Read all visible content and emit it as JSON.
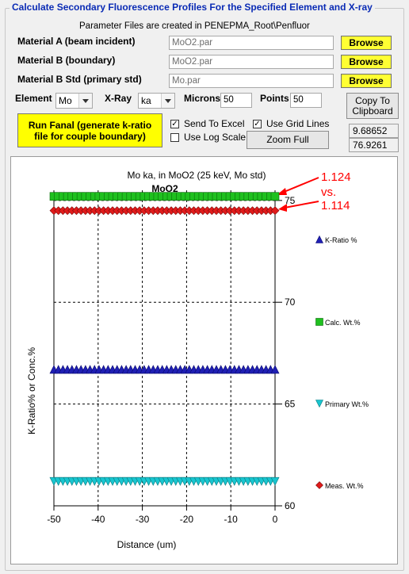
{
  "group_title": "Calculate Secondary Fluorescence Profiles For the Specified Element and X-ray",
  "note": "Parameter Files are created in PENEPMA_Root\\Penfluor",
  "materials": [
    {
      "label": "Material A (beam incident)",
      "value": "MoO2.par",
      "button": "Browse"
    },
    {
      "label": "Material B (boundary)",
      "value": "MoO2.par",
      "button": "Browse"
    },
    {
      "label": "Material B Std (primary std)",
      "value": "Mo.par",
      "button": "Browse"
    }
  ],
  "element": {
    "label": "Element",
    "value": "Mo"
  },
  "xray": {
    "label": "X-Ray",
    "value": "ka"
  },
  "microns": {
    "label": "Microns",
    "value": "50"
  },
  "points": {
    "label": "Points",
    "value": "50"
  },
  "copy_button": {
    "line1": "Copy To",
    "line2": "Clipboard"
  },
  "run_button": {
    "line1": "Run Fanal (generate k-ratio",
    "line2": "file for couple boundary)"
  },
  "send_to_excel": {
    "label": "Send To Excel",
    "checked": true
  },
  "use_grid_lines": {
    "label": "Use Grid Lines",
    "checked": true
  },
  "use_log_scale": {
    "label": "Use Log Scale",
    "checked": false
  },
  "zoom_full": "Zoom Full",
  "readouts": [
    "9.68652",
    "76.9261"
  ],
  "annotation": {
    "line1": "1.124",
    "line2": "vs.",
    "line3": "1.114",
    "color": "#ff0000"
  },
  "chart_data": {
    "type": "scatter",
    "title": "Mo ka, in MoO2 (25 keV, Mo std)",
    "subtitle": "MoO2",
    "xlabel": "Distance (um)",
    "ylabel": "K-Ratio% or Conc.%",
    "xlim": [
      -50,
      0
    ],
    "ylim": [
      60,
      75.5
    ],
    "x_ticks": [
      "-50",
      "-40",
      "-30",
      "-20",
      "-10",
      "0"
    ],
    "y_ticks": [
      "75",
      "70",
      "65",
      "60"
    ],
    "grid": true,
    "legend_position": "right",
    "series": [
      {
        "name": "K-Ratio %",
        "marker": "triangle-up",
        "color": "#1f1fb4",
        "value": 66.7
      },
      {
        "name": "Calc. Wt.%",
        "marker": "square",
        "color": "#1fc01f",
        "value": 75.2
      },
      {
        "name": "Primary Wt.%",
        "marker": "triangle-down",
        "color": "#18c6d0",
        "value": 61.2
      },
      {
        "name": "Meas. Wt.%",
        "marker": "diamond",
        "color": "#e01b1b",
        "value": 74.5
      }
    ],
    "points": 50
  }
}
